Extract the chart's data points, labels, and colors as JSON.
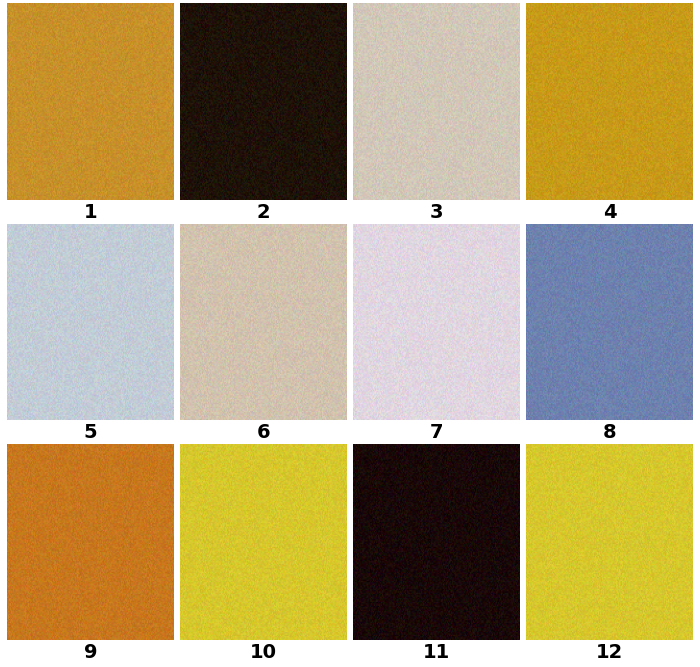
{
  "grid_rows": 3,
  "grid_cols": 4,
  "labels": [
    "1",
    "2",
    "3",
    "4",
    "5",
    "6",
    "7",
    "8",
    "9",
    "10",
    "11",
    "12"
  ],
  "bg_colors": [
    "#c8922a",
    "#2a1a0a",
    "#d8cfc0",
    "#c8a020",
    "#c8d0d8",
    "#d8c8b8",
    "#e0d8e0",
    "#8090b8",
    "#c87820",
    "#d8c830",
    "#200808",
    "#d8c830"
  ],
  "figure_bg": "#ffffff",
  "label_fontsize": 14,
  "label_fontweight": "bold",
  "hspace": 0.08,
  "wspace": 0.05,
  "figsize": [
    7.0,
    6.67
  ],
  "dpi": 100
}
